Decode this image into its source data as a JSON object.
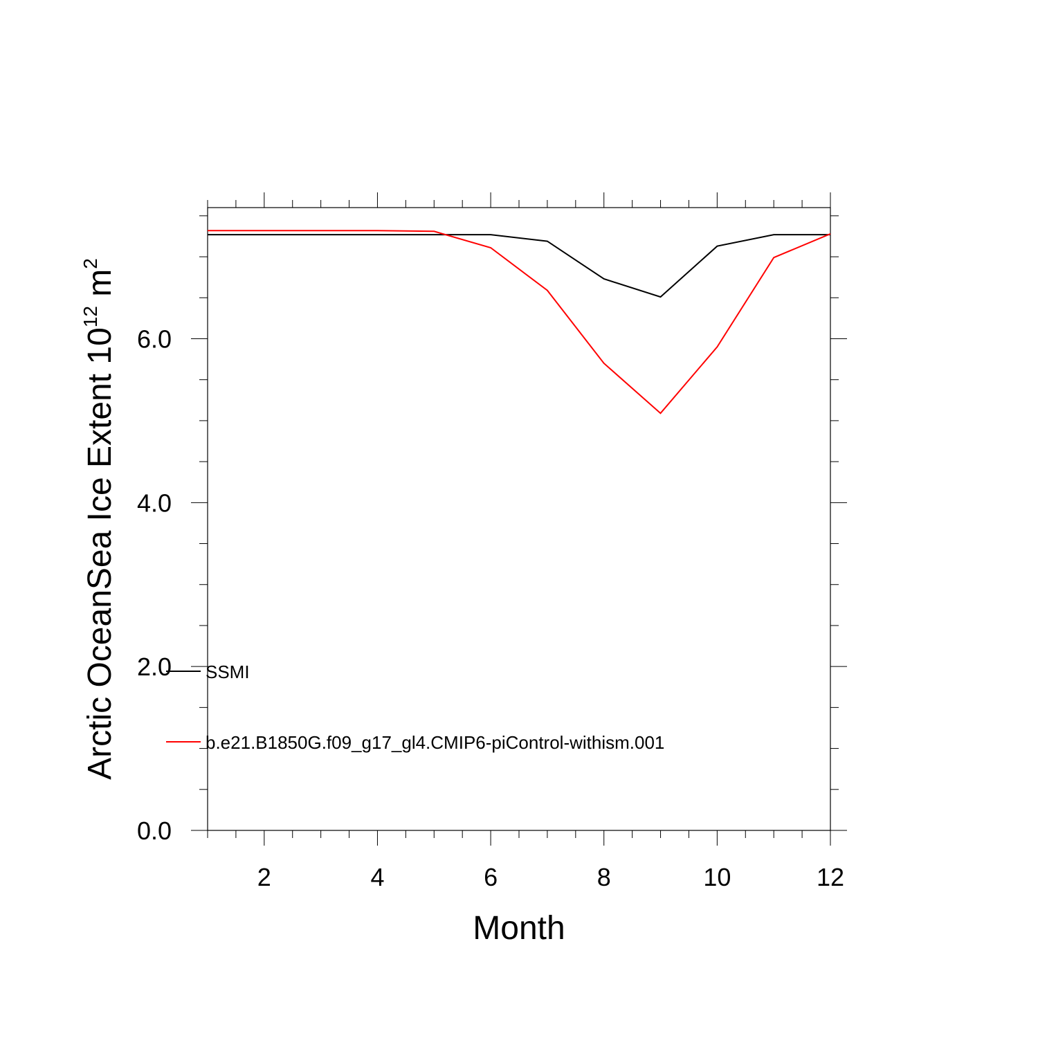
{
  "chart_data": {
    "type": "line",
    "xlabel": "Month",
    "ylabel": {
      "text": "Arctic OceanSea Ice Extent 10",
      "sup1": "12",
      "unit": " m",
      "sup2": "2"
    },
    "xlim": [
      1,
      12
    ],
    "ylim": [
      0,
      7.6
    ],
    "x_ticks": [
      2,
      4,
      6,
      8,
      10,
      12
    ],
    "x_tick_labels": [
      "2",
      "4",
      "6",
      "8",
      "10",
      "12"
    ],
    "y_ticks": [
      0,
      2,
      4,
      6
    ],
    "y_tick_labels": [
      "0.0",
      "2.0",
      "4.0",
      "6.0"
    ],
    "x": [
      1,
      2,
      3,
      4,
      5,
      6,
      7,
      8,
      9,
      10,
      11,
      12
    ],
    "series": [
      {
        "name": "SSMI",
        "color": "#000000",
        "values": [
          7.27,
          7.27,
          7.27,
          7.27,
          7.27,
          7.27,
          7.19,
          6.73,
          6.51,
          7.13,
          7.27,
          7.27
        ]
      },
      {
        "name": "b.e21.B1850G.f09_g17_gl4.CMIP6-piControl-withism.001",
        "color": "#ff0000",
        "values": [
          7.32,
          7.32,
          7.32,
          7.32,
          7.31,
          7.11,
          6.59,
          5.7,
          5.09,
          5.9,
          6.99,
          7.28
        ]
      }
    ],
    "legend_placement": "lower-left",
    "grid": false
  }
}
